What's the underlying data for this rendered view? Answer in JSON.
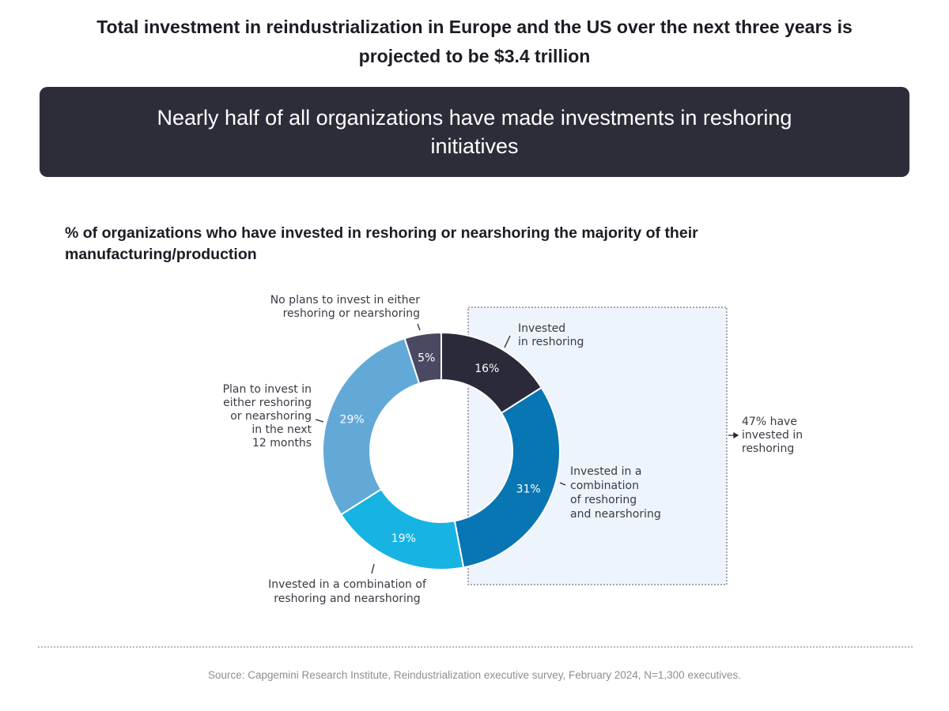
{
  "headline": "Total investment in reindustrialization in Europe and the US over the next three years is projected to be $3.4 trillion",
  "banner": "Nearly half of all organizations have made investments in reshoring initiatives",
  "source": "Source: Capgemini Research Institute, Reindustrialization executive survey, February 2024, N=1,300 executives.",
  "chart_data": {
    "type": "pie",
    "variant": "donut",
    "title": "% of organizations who have invested in reshoring or nearshoring the majority of their manufacturing/production",
    "unit": "%",
    "slices": [
      {
        "label_lines": [
          "Invested",
          "in reshoring"
        ],
        "value": 16,
        "display": "16%",
        "color": "#2b2a3b"
      },
      {
        "label_lines": [
          "Invested in a",
          "combination",
          "of reshoring",
          "and nearshoring"
        ],
        "value": 31,
        "display": "31%",
        "color": "#0876b3"
      },
      {
        "label_lines": [
          "Invested in a combination of",
          "reshoring and nearshoring"
        ],
        "value": 19,
        "display": "19%",
        "color": "#17b3e3"
      },
      {
        "label_lines": [
          "Plan to invest in",
          "either reshoring",
          "or nearshoring",
          "in the next",
          "12 months"
        ],
        "value": 29,
        "display": "29%",
        "color": "#62a9d8"
      },
      {
        "label_lines": [
          "No plans to invest in either",
          "reshoring or nearshoring"
        ],
        "value": 5,
        "display": "5%",
        "color": "#4a4963"
      }
    ],
    "annotation": {
      "lines": [
        "47% have",
        "invested in",
        "reshoring"
      ],
      "value": 47,
      "highlight_color": "#eef4fb"
    },
    "legend": "none"
  }
}
